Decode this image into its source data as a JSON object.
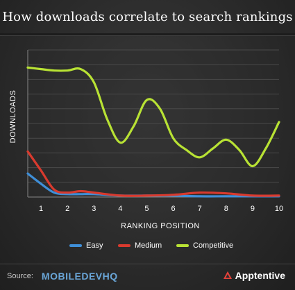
{
  "title": "How downloads correlate to search rankings",
  "chart_data": {
    "type": "line",
    "xlabel": "RANKING POSITION",
    "ylabel": "DOWNLOADS",
    "x": [
      1,
      2,
      3,
      4,
      5,
      6,
      7,
      8,
      9,
      10
    ],
    "xlim": [
      0.5,
      10
    ],
    "ylim": [
      0,
      100
    ],
    "grid": true,
    "legend_position": "bottom",
    "series": [
      {
        "name": "Easy",
        "color": "#3f8fd8",
        "points": [
          [
            0.5,
            16
          ],
          [
            1,
            9
          ],
          [
            1.5,
            3
          ],
          [
            2,
            2
          ],
          [
            2.5,
            2
          ],
          [
            3,
            2
          ],
          [
            4,
            1
          ],
          [
            5,
            1
          ],
          [
            6,
            1
          ],
          [
            7,
            0.5
          ],
          [
            8,
            0.5
          ],
          [
            9,
            0.5
          ],
          [
            10,
            0.5
          ]
        ]
      },
      {
        "name": "Medium",
        "color": "#d83a2e",
        "points": [
          [
            0.5,
            31
          ],
          [
            1,
            18
          ],
          [
            1.5,
            5
          ],
          [
            2,
            3
          ],
          [
            2.5,
            4
          ],
          [
            3,
            3
          ],
          [
            4,
            1
          ],
          [
            5,
            1
          ],
          [
            6,
            1.5
          ],
          [
            7,
            3
          ],
          [
            8,
            2.5
          ],
          [
            9,
            1
          ],
          [
            10,
            1
          ]
        ]
      },
      {
        "name": "Competitive",
        "color": "#b8e234",
        "points": [
          [
            0.5,
            88
          ],
          [
            1,
            87
          ],
          [
            1.5,
            86
          ],
          [
            2,
            86
          ],
          [
            2.5,
            87
          ],
          [
            3,
            78
          ],
          [
            3.5,
            53
          ],
          [
            4,
            37
          ],
          [
            4.5,
            48
          ],
          [
            5,
            66
          ],
          [
            5.5,
            60
          ],
          [
            6,
            40
          ],
          [
            6.5,
            32
          ],
          [
            7,
            27
          ],
          [
            7.5,
            33
          ],
          [
            8,
            39
          ],
          [
            8.5,
            32
          ],
          [
            9,
            21
          ],
          [
            9.5,
            33
          ],
          [
            10,
            51
          ]
        ]
      }
    ]
  },
  "legend": [
    {
      "label": "Easy",
      "color": "#3f8fd8"
    },
    {
      "label": "Medium",
      "color": "#d83a2e"
    },
    {
      "label": "Competitive",
      "color": "#b8e234"
    }
  ],
  "footer": {
    "source_label": "Source:",
    "source_brand": "MOBILEDEVHQ",
    "partner": "Apptentive"
  }
}
